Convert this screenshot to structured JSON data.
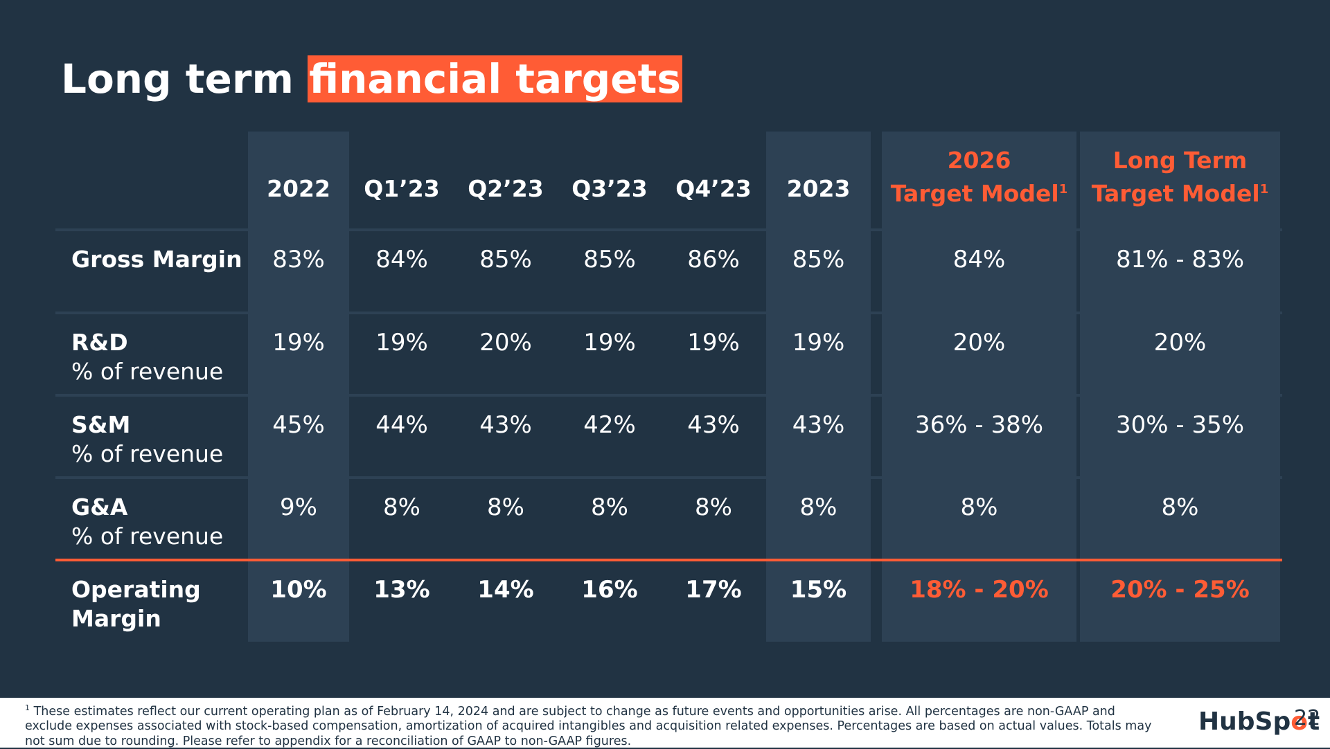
{
  "title": {
    "prefix": "Long term",
    "highlight": "financial targets"
  },
  "columns": [
    {
      "label": "2022"
    },
    {
      "label": "Q1’23"
    },
    {
      "label": "Q2’23"
    },
    {
      "label": "Q3’23"
    },
    {
      "label": "Q4’23"
    },
    {
      "label": "2023"
    },
    {
      "line1": "2026",
      "line2": "Target Model",
      "sup": "1"
    },
    {
      "line1": "Long Term",
      "line2": "Target Model",
      "sup": "1"
    }
  ],
  "rows": [
    {
      "main": "Gross Margin",
      "sub": "",
      "values": [
        "83%",
        "84%",
        "85%",
        "85%",
        "86%",
        "85%",
        "84%",
        "81% - 83%"
      ]
    },
    {
      "main": "R&D",
      "sub": "% of revenue",
      "values": [
        "19%",
        "19%",
        "20%",
        "19%",
        "19%",
        "19%",
        "20%",
        "20%"
      ]
    },
    {
      "main": "S&M",
      "sub": "% of revenue",
      "values": [
        "45%",
        "44%",
        "43%",
        "42%",
        "43%",
        "43%",
        "36% - 38%",
        "30% - 35%"
      ]
    },
    {
      "main": "G&A",
      "sub": "% of revenue",
      "values": [
        "9%",
        "8%",
        "8%",
        "8%",
        "8%",
        "8%",
        "8%",
        "8%"
      ]
    },
    {
      "main": "Operating",
      "sub": "Margin",
      "values": [
        "10%",
        "13%",
        "14%",
        "16%",
        "17%",
        "15%",
        "18% - 20%",
        "20% - 25%"
      ]
    }
  ],
  "footnote": {
    "marker": "1",
    "text": "These estimates reflect our current operating plan as of February 14, 2024 and are subject to change as future events and opportunities arise. All percentages are non-GAAP and exclude expenses associated with stock-based compensation, amortization of acquired intangibles and acquisition related expenses. Percentages are based on actual values. Totals may not sum due to rounding. Please refer to appendix for a reconciliation of GAAP to non-GAAP figures."
  },
  "logo": {
    "part1": "HubSp",
    "part2": "o",
    "part3": "t"
  },
  "page_number": "22",
  "colors": {
    "background": "#213343",
    "accent": "#ff5c35",
    "panel": "#2d4154"
  }
}
